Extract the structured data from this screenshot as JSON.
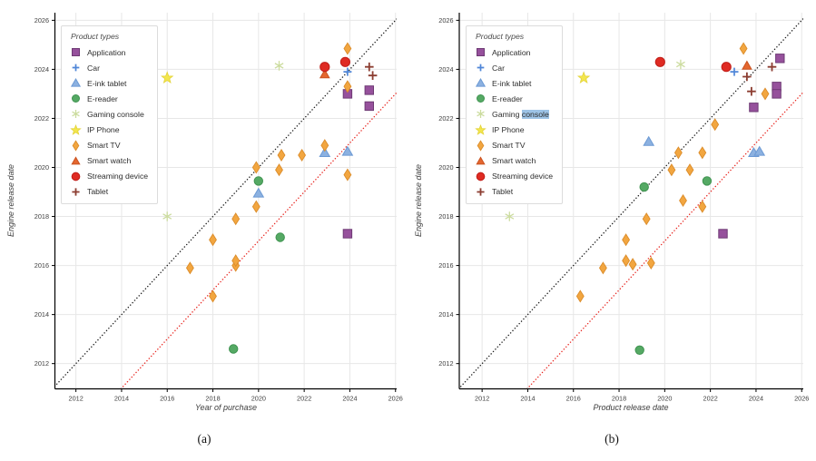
{
  "figure": {
    "caption_a": "(a)",
    "caption_b": "(b)"
  },
  "legend": {
    "title": "Product types",
    "items": [
      {
        "name": "Application",
        "marker": "square",
        "fill": "#96519c",
        "edge": "#6e3a74"
      },
      {
        "name": "Car",
        "marker": "plus",
        "fill": "none",
        "edge": "#4f86d8"
      },
      {
        "name": "E-ink tablet",
        "marker": "triangle",
        "fill": "#8cb1e0",
        "edge": "#6b99d4"
      },
      {
        "name": "E-reader",
        "marker": "circle",
        "fill": "#55a964",
        "edge": "#3f9350"
      },
      {
        "name": "Gaming console",
        "marker": "asterisk",
        "fill": "none",
        "edge": "#ccdc9f"
      },
      {
        "name": "IP Phone",
        "marker": "star",
        "fill": "#f3e64d",
        "edge": "#e3d338"
      },
      {
        "name": "Smart TV",
        "marker": "thin-diamond",
        "fill": "#f2a640",
        "edge": "#db8c2a"
      },
      {
        "name": "Smart watch",
        "marker": "triangle-sm",
        "fill": "#e4672f",
        "edge": "#c9511f"
      },
      {
        "name": "Streaming device",
        "marker": "circle-lg",
        "fill": "#df2b23",
        "edge": "#c01d18"
      },
      {
        "name": "Tablet",
        "marker": "plus-dark",
        "fill": "none",
        "edge": "#8c3d31"
      }
    ]
  },
  "chart_data": [
    {
      "type": "scatter",
      "caption": "(a)",
      "xlabel": "Year of purchase",
      "ylabel": "Engine release date",
      "xlim": [
        2011.08,
        2026.05
      ],
      "ylim": [
        2010.97,
        2026.31
      ],
      "xticks": [
        2012,
        2014,
        2016,
        2018,
        2020,
        2022,
        2024,
        2026
      ],
      "yticks": [
        2012,
        2014,
        2016,
        2018,
        2020,
        2022,
        2024,
        2026
      ],
      "grid": true,
      "legend_position": "upper left",
      "reference_lines": [
        {
          "name": "identity y=x",
          "style": "dotted",
          "color": "#1a1a1a",
          "from": [
            2010.5,
            2010.5
          ],
          "to": [
            2027.0,
            2027.0
          ]
        },
        {
          "name": "y = x - 3",
          "style": "dotted",
          "color": "#e8251f",
          "from": [
            2013.5,
            2010.5
          ],
          "to": [
            2027.0,
            2024.0
          ]
        }
      ],
      "series": [
        {
          "name": "Application",
          "points": [
            [
              2023.9,
              2023.0
            ],
            [
              2024.85,
              2023.15
            ],
            [
              2024.85,
              2022.5
            ],
            [
              2023.9,
              2017.3
            ]
          ]
        },
        {
          "name": "Car",
          "points": [
            [
              2023.9,
              2023.9
            ]
          ]
        },
        {
          "name": "E-ink tablet",
          "points": [
            [
              2020.0,
              2018.95
            ],
            [
              2022.9,
              2020.6
            ],
            [
              2023.9,
              2020.65
            ]
          ]
        },
        {
          "name": "E-reader",
          "points": [
            [
              2018.9,
              2012.6
            ],
            [
              2020.0,
              2019.45
            ],
            [
              2020.95,
              2017.15
            ]
          ]
        },
        {
          "name": "Gaming console",
          "points": [
            [
              2016.0,
              2018.0
            ],
            [
              2020.9,
              2024.15
            ]
          ]
        },
        {
          "name": "IP Phone",
          "points": [
            [
              2016.0,
              2023.65
            ]
          ]
        },
        {
          "name": "Smart TV",
          "points": [
            [
              2017.0,
              2015.9
            ],
            [
              2018.0,
              2014.75
            ],
            [
              2018.0,
              2017.05
            ],
            [
              2019.0,
              2016.0
            ],
            [
              2019.0,
              2016.2
            ],
            [
              2019.0,
              2017.9
            ],
            [
              2019.9,
              2020.0
            ],
            [
              2019.9,
              2018.4
            ],
            [
              2020.9,
              2019.9
            ],
            [
              2021.0,
              2020.5
            ],
            [
              2021.9,
              2020.5
            ],
            [
              2022.9,
              2020.9
            ],
            [
              2023.9,
              2024.85
            ],
            [
              2023.9,
              2023.3
            ],
            [
              2023.9,
              2019.7
            ]
          ]
        },
        {
          "name": "Smart watch",
          "points": [
            [
              2022.9,
              2023.8
            ]
          ]
        },
        {
          "name": "Streaming device",
          "points": [
            [
              2022.9,
              2024.1
            ],
            [
              2023.8,
              2024.3
            ]
          ]
        },
        {
          "name": "Tablet",
          "points": [
            [
              2024.85,
              2024.1
            ],
            [
              2025.0,
              2023.75
            ]
          ]
        }
      ]
    },
    {
      "type": "scatter",
      "caption": "(b)",
      "xlabel": "Product release date",
      "ylabel": "Engine release date",
      "xlim": [
        2011.0,
        2026.07
      ],
      "ylim": [
        2010.97,
        2026.31
      ],
      "xticks": [
        2012,
        2014,
        2016,
        2018,
        2020,
        2022,
        2024,
        2026
      ],
      "yticks": [
        2012,
        2014,
        2016,
        2018,
        2020,
        2022,
        2024,
        2026
      ],
      "grid": true,
      "legend_position": "upper left",
      "legend_selection": {
        "item": "Gaming console",
        "highlighted_text": "console"
      },
      "reference_lines": [
        {
          "name": "identity y=x",
          "style": "dotted",
          "color": "#1a1a1a",
          "from": [
            2010.5,
            2010.5
          ],
          "to": [
            2027.0,
            2027.0
          ]
        },
        {
          "name": "y = x - 3",
          "style": "dotted",
          "color": "#e8251f",
          "from": [
            2013.5,
            2010.5
          ],
          "to": [
            2027.0,
            2024.0
          ]
        }
      ],
      "series": [
        {
          "name": "Application",
          "points": [
            [
              2025.05,
              2024.45
            ],
            [
              2024.9,
              2023.3
            ],
            [
              2024.9,
              2023.0
            ],
            [
              2023.9,
              2022.45
            ],
            [
              2022.55,
              2017.3
            ]
          ]
        },
        {
          "name": "Car",
          "points": [
            [
              2023.05,
              2023.9
            ]
          ]
        },
        {
          "name": "E-ink tablet",
          "points": [
            [
              2019.3,
              2021.05
            ],
            [
              2023.9,
              2020.6
            ],
            [
              2024.15,
              2020.65
            ]
          ]
        },
        {
          "name": "E-reader",
          "points": [
            [
              2018.9,
              2012.55
            ],
            [
              2019.1,
              2019.2
            ],
            [
              2021.85,
              2019.45
            ]
          ]
        },
        {
          "name": "Gaming console",
          "points": [
            [
              2013.2,
              2018.0
            ],
            [
              2020.7,
              2024.2
            ]
          ]
        },
        {
          "name": "IP Phone",
          "points": [
            [
              2016.45,
              2023.65
            ]
          ]
        },
        {
          "name": "Smart TV",
          "points": [
            [
              2016.3,
              2014.75
            ],
            [
              2017.3,
              2015.9
            ],
            [
              2018.3,
              2017.05
            ],
            [
              2018.3,
              2016.2
            ],
            [
              2018.6,
              2016.05
            ],
            [
              2019.4,
              2016.1
            ],
            [
              2019.2,
              2017.9
            ],
            [
              2020.3,
              2019.9
            ],
            [
              2021.1,
              2019.9
            ],
            [
              2020.6,
              2020.6
            ],
            [
              2021.65,
              2020.6
            ],
            [
              2020.8,
              2018.65
            ],
            [
              2021.65,
              2018.4
            ],
            [
              2022.2,
              2021.75
            ],
            [
              2023.45,
              2024.85
            ],
            [
              2024.4,
              2023.0
            ]
          ]
        },
        {
          "name": "Smart watch",
          "points": [
            [
              2023.6,
              2024.15
            ]
          ]
        },
        {
          "name": "Streaming device",
          "points": [
            [
              2019.8,
              2024.3
            ],
            [
              2022.7,
              2024.1
            ]
          ]
        },
        {
          "name": "Tablet",
          "points": [
            [
              2023.6,
              2023.7
            ],
            [
              2023.8,
              2023.1
            ],
            [
              2024.7,
              2024.1
            ]
          ]
        }
      ]
    }
  ]
}
